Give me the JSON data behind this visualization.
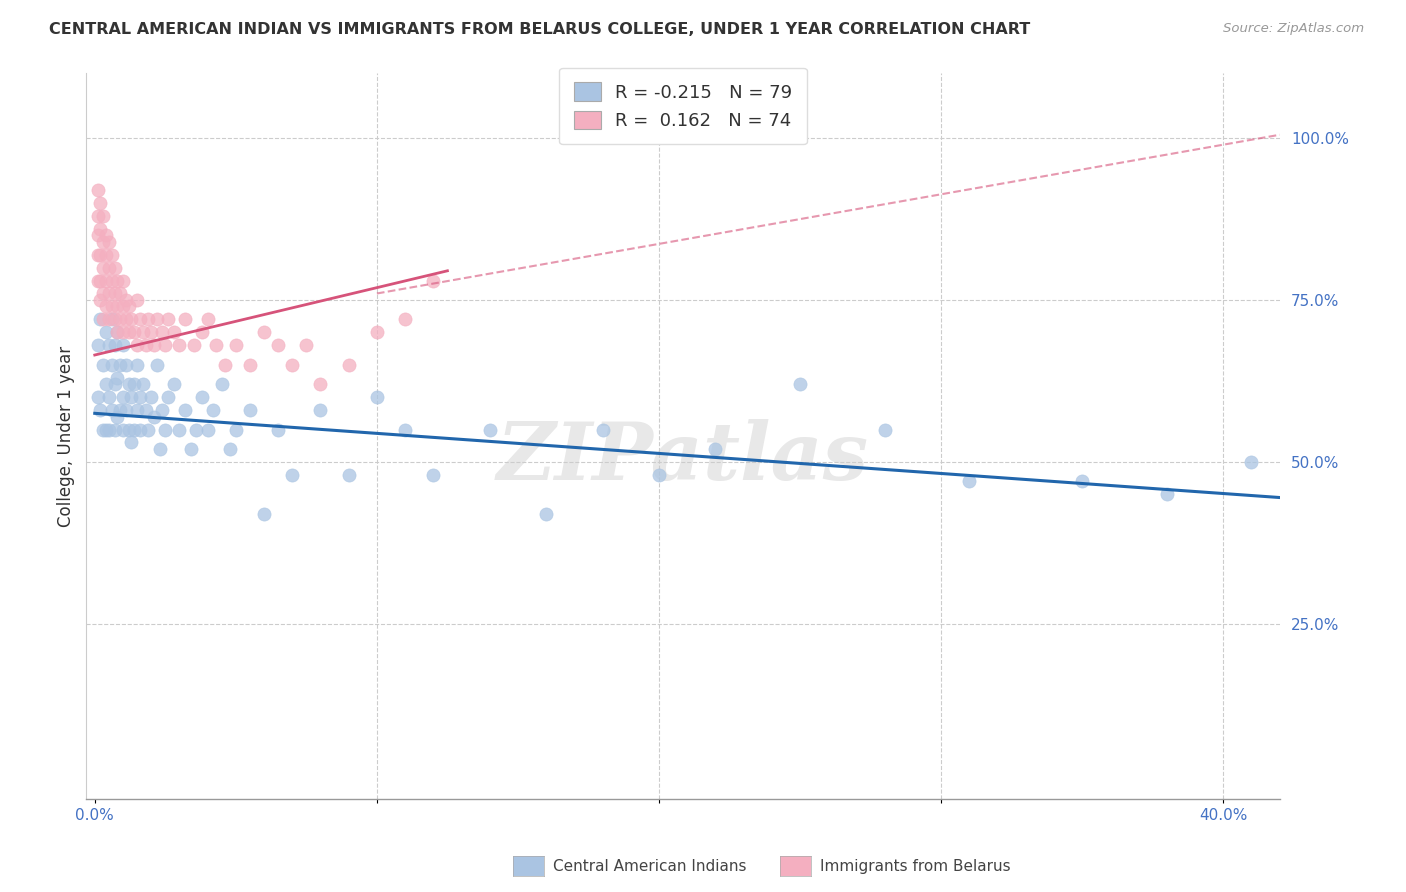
{
  "title": "CENTRAL AMERICAN INDIAN VS IMMIGRANTS FROM BELARUS COLLEGE, UNDER 1 YEAR CORRELATION CHART",
  "source": "Source: ZipAtlas.com",
  "ylabel": "College, Under 1 year",
  "xlim": [
    -0.003,
    0.42
  ],
  "ylim": [
    -0.02,
    1.1
  ],
  "ytick_vals_right": [
    0.25,
    0.5,
    0.75,
    1.0
  ],
  "ytick_labels_right": [
    "25.0%",
    "50.0%",
    "75.0%",
    "100.0%"
  ],
  "blue_R": "-0.215",
  "blue_N": "79",
  "pink_R": "0.162",
  "pink_N": "74",
  "blue_color": "#aac4e2",
  "pink_color": "#f4afc0",
  "blue_line_color": "#2166ac",
  "pink_line_color": "#d6537a",
  "watermark": "ZIPatlas",
  "legend_label_blue": "Central American Indians",
  "legend_label_pink": "Immigrants from Belarus",
  "blue_scatter_x": [
    0.001,
    0.001,
    0.002,
    0.002,
    0.003,
    0.003,
    0.004,
    0.004,
    0.004,
    0.005,
    0.005,
    0.005,
    0.006,
    0.006,
    0.006,
    0.007,
    0.007,
    0.007,
    0.008,
    0.008,
    0.008,
    0.009,
    0.009,
    0.01,
    0.01,
    0.01,
    0.011,
    0.011,
    0.012,
    0.012,
    0.013,
    0.013,
    0.014,
    0.014,
    0.015,
    0.015,
    0.016,
    0.016,
    0.017,
    0.018,
    0.019,
    0.02,
    0.021,
    0.022,
    0.023,
    0.024,
    0.025,
    0.026,
    0.028,
    0.03,
    0.032,
    0.034,
    0.036,
    0.038,
    0.04,
    0.042,
    0.045,
    0.048,
    0.05,
    0.055,
    0.06,
    0.065,
    0.07,
    0.08,
    0.09,
    0.1,
    0.11,
    0.12,
    0.14,
    0.16,
    0.18,
    0.2,
    0.22,
    0.25,
    0.28,
    0.31,
    0.35,
    0.38,
    0.41
  ],
  "blue_scatter_y": [
    0.68,
    0.6,
    0.72,
    0.58,
    0.65,
    0.55,
    0.7,
    0.62,
    0.55,
    0.68,
    0.6,
    0.55,
    0.72,
    0.65,
    0.58,
    0.68,
    0.62,
    0.55,
    0.7,
    0.63,
    0.57,
    0.65,
    0.58,
    0.68,
    0.6,
    0.55,
    0.65,
    0.58,
    0.62,
    0.55,
    0.6,
    0.53,
    0.62,
    0.55,
    0.65,
    0.58,
    0.6,
    0.55,
    0.62,
    0.58,
    0.55,
    0.6,
    0.57,
    0.65,
    0.52,
    0.58,
    0.55,
    0.6,
    0.62,
    0.55,
    0.58,
    0.52,
    0.55,
    0.6,
    0.55,
    0.58,
    0.62,
    0.52,
    0.55,
    0.58,
    0.42,
    0.55,
    0.48,
    0.58,
    0.48,
    0.6,
    0.55,
    0.48,
    0.55,
    0.42,
    0.55,
    0.48,
    0.52,
    0.62,
    0.55,
    0.47,
    0.47,
    0.45,
    0.5
  ],
  "pink_scatter_x": [
    0.001,
    0.001,
    0.001,
    0.001,
    0.001,
    0.002,
    0.002,
    0.002,
    0.002,
    0.002,
    0.003,
    0.003,
    0.003,
    0.003,
    0.003,
    0.004,
    0.004,
    0.004,
    0.004,
    0.005,
    0.005,
    0.005,
    0.005,
    0.006,
    0.006,
    0.006,
    0.007,
    0.007,
    0.007,
    0.008,
    0.008,
    0.008,
    0.009,
    0.009,
    0.01,
    0.01,
    0.01,
    0.011,
    0.011,
    0.012,
    0.012,
    0.013,
    0.014,
    0.015,
    0.015,
    0.016,
    0.017,
    0.018,
    0.019,
    0.02,
    0.021,
    0.022,
    0.024,
    0.025,
    0.026,
    0.028,
    0.03,
    0.032,
    0.035,
    0.038,
    0.04,
    0.043,
    0.046,
    0.05,
    0.055,
    0.06,
    0.065,
    0.07,
    0.075,
    0.08,
    0.09,
    0.1,
    0.11,
    0.12
  ],
  "pink_scatter_y": [
    0.92,
    0.88,
    0.85,
    0.82,
    0.78,
    0.9,
    0.86,
    0.82,
    0.78,
    0.75,
    0.88,
    0.84,
    0.8,
    0.76,
    0.72,
    0.85,
    0.82,
    0.78,
    0.74,
    0.84,
    0.8,
    0.76,
    0.72,
    0.82,
    0.78,
    0.74,
    0.8,
    0.76,
    0.72,
    0.78,
    0.74,
    0.7,
    0.76,
    0.72,
    0.78,
    0.74,
    0.7,
    0.75,
    0.72,
    0.74,
    0.7,
    0.72,
    0.7,
    0.75,
    0.68,
    0.72,
    0.7,
    0.68,
    0.72,
    0.7,
    0.68,
    0.72,
    0.7,
    0.68,
    0.72,
    0.7,
    0.68,
    0.72,
    0.68,
    0.7,
    0.72,
    0.68,
    0.65,
    0.68,
    0.65,
    0.7,
    0.68,
    0.65,
    0.68,
    0.62,
    0.65,
    0.7,
    0.72,
    0.78
  ],
  "blue_trendline": [
    0.0,
    0.42,
    0.575,
    0.445
  ],
  "pink_solid_trendline": [
    0.0,
    0.125,
    0.665,
    0.795
  ],
  "pink_dash_trendline": [
    0.1,
    0.42,
    0.76,
    1.005
  ]
}
